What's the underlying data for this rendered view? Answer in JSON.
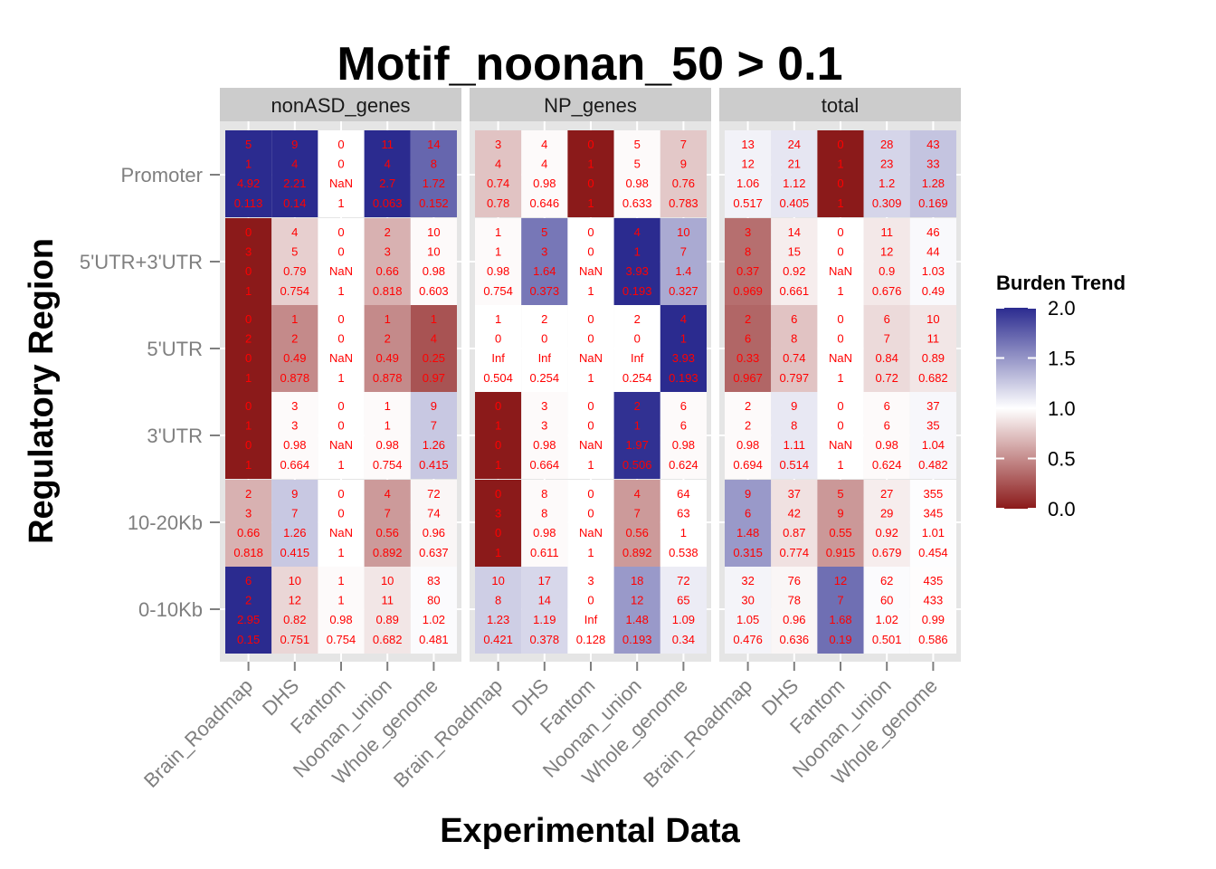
{
  "chart_data": {
    "type": "heatmap",
    "title": "Motif_noonan_50 > 0.1",
    "xlabel": "Experimental Data",
    "ylabel": "Regulatory Region",
    "columns": [
      "Brain_Roadmap",
      "DHS",
      "Fantom",
      "Noonan_union",
      "Whole_genome"
    ],
    "rows": [
      "Promoter",
      "5'UTR+3'UTR",
      "5'UTR",
      "3'UTR",
      "10-20Kb",
      "0-10Kb"
    ],
    "legend": {
      "title": "Burden Trend",
      "ticks": [
        "2.0",
        "1.5",
        "1.0",
        "0.5",
        "0.0"
      ],
      "range": [
        0,
        2
      ],
      "low_color": "#8b1a1a",
      "mid_color": "#ffffff",
      "high_color": "#2b2b8f"
    },
    "facets": [
      {
        "name": "nonASD_genes",
        "cells": [
          [
            [
              "5",
              "1",
              "4.92",
              "0.113"
            ],
            [
              "9",
              "4",
              "2.21",
              "0.14"
            ],
            [
              "0",
              "0",
              "NaN",
              "1"
            ],
            [
              "11",
              "4",
              "2.7",
              "0.063"
            ],
            [
              "14",
              "8",
              "1.72",
              "0.152"
            ]
          ],
          [
            [
              "0",
              "3",
              "0",
              "1"
            ],
            [
              "4",
              "5",
              "0.79",
              "0.754"
            ],
            [
              "0",
              "0",
              "NaN",
              "1"
            ],
            [
              "2",
              "3",
              "0.66",
              "0.818"
            ],
            [
              "10",
              "10",
              "0.98",
              "0.603"
            ]
          ],
          [
            [
              "0",
              "2",
              "0",
              "1"
            ],
            [
              "1",
              "2",
              "0.49",
              "0.878"
            ],
            [
              "0",
              "0",
              "NaN",
              "1"
            ],
            [
              "1",
              "2",
              "0.49",
              "0.878"
            ],
            [
              "1",
              "4",
              "0.25",
              "0.97"
            ]
          ],
          [
            [
              "0",
              "1",
              "0",
              "1"
            ],
            [
              "3",
              "3",
              "0.98",
              "0.664"
            ],
            [
              "0",
              "0",
              "NaN",
              "1"
            ],
            [
              "1",
              "1",
              "0.98",
              "0.754"
            ],
            [
              "9",
              "7",
              "1.26",
              "0.415"
            ]
          ],
          [
            [
              "2",
              "3",
              "0.66",
              "0.818"
            ],
            [
              "9",
              "7",
              "1.26",
              "0.415"
            ],
            [
              "0",
              "0",
              "NaN",
              "1"
            ],
            [
              "4",
              "7",
              "0.56",
              "0.892"
            ],
            [
              "72",
              "74",
              "0.96",
              "0.637"
            ]
          ],
          [
            [
              "6",
              "2",
              "2.95",
              "0.15"
            ],
            [
              "10",
              "12",
              "0.82",
              "0.751"
            ],
            [
              "1",
              "1",
              "0.98",
              "0.754"
            ],
            [
              "10",
              "11",
              "0.89",
              "0.682"
            ],
            [
              "83",
              "80",
              "1.02",
              "0.481"
            ]
          ]
        ]
      },
      {
        "name": "NP_genes",
        "cells": [
          [
            [
              "3",
              "4",
              "0.74",
              "0.78"
            ],
            [
              "4",
              "4",
              "0.98",
              "0.646"
            ],
            [
              "0",
              "1",
              "0",
              "1"
            ],
            [
              "5",
              "5",
              "0.98",
              "0.633"
            ],
            [
              "7",
              "9",
              "0.76",
              "0.783"
            ]
          ],
          [
            [
              "1",
              "1",
              "0.98",
              "0.754"
            ],
            [
              "5",
              "3",
              "1.64",
              "0.373"
            ],
            [
              "0",
              "0",
              "NaN",
              "1"
            ],
            [
              "4",
              "1",
              "3.93",
              "0.193"
            ],
            [
              "10",
              "7",
              "1.4",
              "0.327"
            ]
          ],
          [
            [
              "1",
              "0",
              "Inf",
              "0.504"
            ],
            [
              "2",
              "0",
              "Inf",
              "0.254"
            ],
            [
              "0",
              "0",
              "NaN",
              "1"
            ],
            [
              "2",
              "0",
              "Inf",
              "0.254"
            ],
            [
              "4",
              "1",
              "3.93",
              "0.193"
            ]
          ],
          [
            [
              "0",
              "1",
              "0",
              "1"
            ],
            [
              "3",
              "3",
              "0.98",
              "0.664"
            ],
            [
              "0",
              "0",
              "NaN",
              "1"
            ],
            [
              "2",
              "1",
              "1.97",
              "0.506"
            ],
            [
              "6",
              "6",
              "0.98",
              "0.624"
            ]
          ],
          [
            [
              "0",
              "3",
              "0",
              "1"
            ],
            [
              "8",
              "8",
              "0.98",
              "0.611"
            ],
            [
              "0",
              "0",
              "NaN",
              "1"
            ],
            [
              "4",
              "7",
              "0.56",
              "0.892"
            ],
            [
              "64",
              "63",
              "1",
              "0.538"
            ]
          ],
          [
            [
              "10",
              "8",
              "1.23",
              "0.421"
            ],
            [
              "17",
              "14",
              "1.19",
              "0.378"
            ],
            [
              "3",
              "0",
              "Inf",
              "0.128"
            ],
            [
              "18",
              "12",
              "1.48",
              "0.193"
            ],
            [
              "72",
              "65",
              "1.09",
              "0.34"
            ]
          ]
        ]
      },
      {
        "name": "total",
        "cells": [
          [
            [
              "13",
              "12",
              "1.06",
              "0.517"
            ],
            [
              "24",
              "21",
              "1.12",
              "0.405"
            ],
            [
              "0",
              "1",
              "0",
              "1"
            ],
            [
              "28",
              "23",
              "1.2",
              "0.309"
            ],
            [
              "43",
              "33",
              "1.28",
              "0.169"
            ]
          ],
          [
            [
              "3",
              "8",
              "0.37",
              "0.969"
            ],
            [
              "14",
              "15",
              "0.92",
              "0.661"
            ],
            [
              "0",
              "0",
              "NaN",
              "1"
            ],
            [
              "11",
              "12",
              "0.9",
              "0.676"
            ],
            [
              "46",
              "44",
              "1.03",
              "0.49"
            ]
          ],
          [
            [
              "2",
              "6",
              "0.33",
              "0.967"
            ],
            [
              "6",
              "8",
              "0.74",
              "0.797"
            ],
            [
              "0",
              "0",
              "NaN",
              "1"
            ],
            [
              "6",
              "7",
              "0.84",
              "0.72"
            ],
            [
              "10",
              "11",
              "0.89",
              "0.682"
            ]
          ],
          [
            [
              "2",
              "2",
              "0.98",
              "0.694"
            ],
            [
              "9",
              "8",
              "1.11",
              "0.514"
            ],
            [
              "0",
              "0",
              "NaN",
              "1"
            ],
            [
              "6",
              "6",
              "0.98",
              "0.624"
            ],
            [
              "37",
              "35",
              "1.04",
              "0.482"
            ]
          ],
          [
            [
              "9",
              "6",
              "1.48",
              "0.315"
            ],
            [
              "37",
              "42",
              "0.87",
              "0.774"
            ],
            [
              "5",
              "9",
              "0.55",
              "0.915"
            ],
            [
              "27",
              "29",
              "0.92",
              "0.679"
            ],
            [
              "355",
              "345",
              "1.01",
              "0.454"
            ]
          ],
          [
            [
              "32",
              "30",
              "1.05",
              "0.476"
            ],
            [
              "76",
              "78",
              "0.96",
              "0.636"
            ],
            [
              "12",
              "7",
              "1.68",
              "0.19"
            ],
            [
              "62",
              "60",
              "1.02",
              "0.501"
            ],
            [
              "435",
              "433",
              "0.99",
              "0.586"
            ]
          ]
        ]
      }
    ]
  }
}
